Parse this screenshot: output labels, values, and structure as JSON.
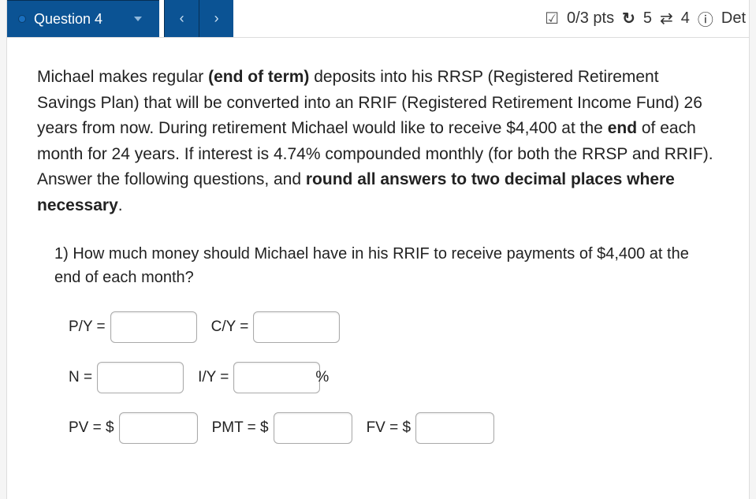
{
  "header": {
    "question_label": "Question 4",
    "prev_arrow": "‹",
    "next_arrow": "›",
    "points": "0/3 pts",
    "retry_count": "5",
    "swap_count": "4",
    "details_label": "Det"
  },
  "prompt": {
    "line1a": "Michael makes regular ",
    "line1b": "(end of term)",
    "line1c": " deposits into his RRSP (Registered Retirement Savings Plan) that will be converted into an RRIF (Registered Retirement Income Fund) 26 years from now. During retirement Michael would like to receive $4,400 at the ",
    "line1d": "end",
    "line1e": " of each month for 24 years. If interest is 4.74% compounded monthly (for both the RRSP and RRIF). Answer the following questions, and ",
    "line1f": "round all answers to two decimal places where necessary",
    "line1g": "."
  },
  "q1": {
    "text": "1) How much money should Michael have in his RRIF to receive payments of $4,400 at the end of each month?",
    "labels": {
      "py": "P/Y =",
      "cy": "C/Y =",
      "n": "N =",
      "iy": "I/Y =",
      "pct": "%",
      "pv": "PV = $",
      "pmt": "PMT = $",
      "fv": "FV = $"
    }
  }
}
